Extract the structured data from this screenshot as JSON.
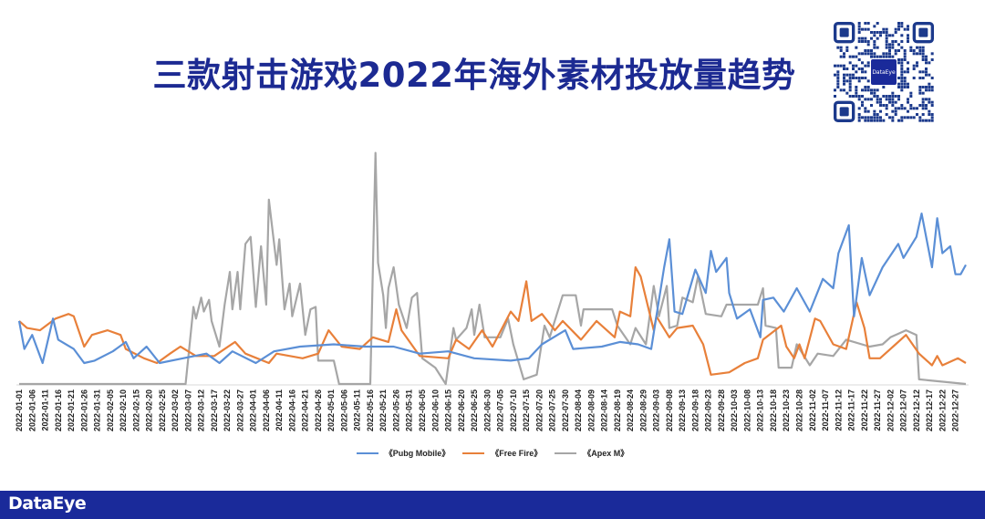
{
  "title": "三款射击游戏2022年海外素材投放量趋势",
  "qr": {
    "center_label": "DataEye"
  },
  "footer": {
    "logo": "DataEye"
  },
  "colors": {
    "title": "#1c2a92",
    "footer": "#1a2a9a",
    "pubg": "#5b8fd6",
    "freefire": "#e8803a",
    "apex": "#a6a6a6"
  },
  "chart_data": {
    "type": "line",
    "title": "三款射击游戏2022年海外素材投放量趋势",
    "xlabel": "",
    "ylabel": "",
    "y_axis_labels_shown": false,
    "ylim": [
      0,
      100
    ],
    "xlim": [
      "2022-01-01",
      "2022-12-31"
    ],
    "grid": false,
    "legend_position": "bottom",
    "x_tick_labels": [
      "2022-01-01",
      "2022-01-06",
      "2022-01-11",
      "2022-01-16",
      "2022-01-21",
      "2022-01-26",
      "2022-01-31",
      "2022-02-05",
      "2022-02-10",
      "2022-02-15",
      "2022-02-20",
      "2022-02-25",
      "2022-03-02",
      "2022-03-07",
      "2022-03-12",
      "2022-03-17",
      "2022-03-22",
      "2022-03-27",
      "2022-04-01",
      "2022-04-06",
      "2022-04-11",
      "2022-04-16",
      "2022-04-21",
      "2022-04-26",
      "2022-05-01",
      "2022-05-06",
      "2022-05-11",
      "2022-05-16",
      "2022-05-21",
      "2022-05-26",
      "2022-05-31",
      "2022-06-05",
      "2022-06-10",
      "2022-06-15",
      "2022-06-20",
      "2022-06-25",
      "2022-06-30",
      "2022-07-05",
      "2022-07-10",
      "2022-07-15",
      "2022-07-20",
      "2022-07-25",
      "2022-07-30",
      "2022-08-04",
      "2022-08-09",
      "2022-08-14",
      "2022-08-19",
      "2022-08-24",
      "2022-08-29",
      "2022-09-03",
      "2022-09-08",
      "2022-09-13",
      "2022-09-18",
      "2022-09-23",
      "2022-09-28",
      "2022-10-03",
      "2022-10-08",
      "2022-10-13",
      "2022-10-18",
      "2022-10-23",
      "2022-10-28",
      "2022-11-02",
      "2022-11-07",
      "2022-11-12",
      "2022-11-17",
      "2022-11-22",
      "2022-11-27",
      "2022-12-02",
      "2022-12-07",
      "2022-12-12",
      "2022-12-17",
      "2022-12-22",
      "2022-12-27"
    ],
    "series": [
      {
        "name": "《Pubg Mobile》",
        "color": "#5b8fd6",
        "points": [
          [
            "2022-01-01",
            27
          ],
          [
            "2022-01-03",
            15
          ],
          [
            "2022-01-06",
            21
          ],
          [
            "2022-01-10",
            9
          ],
          [
            "2022-01-14",
            28
          ],
          [
            "2022-01-16",
            19
          ],
          [
            "2022-01-22",
            15
          ],
          [
            "2022-01-26",
            9
          ],
          [
            "2022-01-30",
            10
          ],
          [
            "2022-02-06",
            14
          ],
          [
            "2022-02-11",
            18
          ],
          [
            "2022-02-14",
            11
          ],
          [
            "2022-02-19",
            16
          ],
          [
            "2022-02-24",
            9
          ],
          [
            "2022-03-05",
            11
          ],
          [
            "2022-03-14",
            13
          ],
          [
            "2022-03-19",
            9
          ],
          [
            "2022-03-24",
            14
          ],
          [
            "2022-04-02",
            9
          ],
          [
            "2022-04-09",
            14
          ],
          [
            "2022-04-19",
            16
          ],
          [
            "2022-05-02",
            17
          ],
          [
            "2022-05-14",
            16
          ],
          [
            "2022-05-25",
            16
          ],
          [
            "2022-06-04",
            13
          ],
          [
            "2022-06-15",
            14
          ],
          [
            "2022-06-25",
            11
          ],
          [
            "2022-07-09",
            10
          ],
          [
            "2022-07-16",
            11
          ],
          [
            "2022-07-21",
            17
          ],
          [
            "2022-07-30",
            23
          ],
          [
            "2022-08-02",
            15
          ],
          [
            "2022-08-13",
            16
          ],
          [
            "2022-08-20",
            18
          ],
          [
            "2022-08-27",
            17
          ],
          [
            "2022-09-01",
            15
          ],
          [
            "2022-09-06",
            50
          ],
          [
            "2022-09-08",
            62
          ],
          [
            "2022-09-10",
            31
          ],
          [
            "2022-09-13",
            30
          ],
          [
            "2022-09-18",
            49
          ],
          [
            "2022-09-22",
            39
          ],
          [
            "2022-09-24",
            57
          ],
          [
            "2022-09-26",
            48
          ],
          [
            "2022-09-30",
            54
          ],
          [
            "2022-10-01",
            39
          ],
          [
            "2022-10-04",
            28
          ],
          [
            "2022-10-09",
            32
          ],
          [
            "2022-10-13",
            20
          ],
          [
            "2022-10-14",
            36
          ],
          [
            "2022-10-18",
            37
          ],
          [
            "2022-10-22",
            31
          ],
          [
            "2022-10-27",
            41
          ],
          [
            "2022-11-01",
            31
          ],
          [
            "2022-11-06",
            45
          ],
          [
            "2022-11-10",
            41
          ],
          [
            "2022-11-12",
            56
          ],
          [
            "2022-11-16",
            68
          ],
          [
            "2022-11-18",
            29
          ],
          [
            "2022-11-21",
            54
          ],
          [
            "2022-11-24",
            38
          ],
          [
            "2022-11-29",
            50
          ],
          [
            "2022-12-05",
            60
          ],
          [
            "2022-12-07",
            54
          ],
          [
            "2022-12-12",
            63
          ],
          [
            "2022-12-14",
            73
          ],
          [
            "2022-12-18",
            50
          ],
          [
            "2022-12-20",
            71
          ],
          [
            "2022-12-22",
            56
          ],
          [
            "2022-12-25",
            59
          ],
          [
            "2022-12-27",
            47
          ],
          [
            "2022-12-29",
            47
          ],
          [
            "2022-12-31",
            51
          ]
        ]
      },
      {
        "name": "《Free Fire》",
        "color": "#e8803a",
        "points": [
          [
            "2022-01-01",
            27
          ],
          [
            "2022-01-04",
            24
          ],
          [
            "2022-01-09",
            23
          ],
          [
            "2022-01-15",
            28
          ],
          [
            "2022-01-20",
            30
          ],
          [
            "2022-01-22",
            29
          ],
          [
            "2022-01-26",
            16
          ],
          [
            "2022-01-29",
            21
          ],
          [
            "2022-02-04",
            23
          ],
          [
            "2022-02-09",
            21
          ],
          [
            "2022-02-11",
            15
          ],
          [
            "2022-02-18",
            11
          ],
          [
            "2022-02-23",
            9
          ],
          [
            "2022-02-28",
            13
          ],
          [
            "2022-03-04",
            16
          ],
          [
            "2022-03-10",
            12
          ],
          [
            "2022-03-17",
            12
          ],
          [
            "2022-03-25",
            18
          ],
          [
            "2022-03-29",
            13
          ],
          [
            "2022-04-07",
            9
          ],
          [
            "2022-04-10",
            13
          ],
          [
            "2022-04-20",
            11
          ],
          [
            "2022-04-26",
            13
          ],
          [
            "2022-04-30",
            23
          ],
          [
            "2022-05-05",
            16
          ],
          [
            "2022-05-12",
            15
          ],
          [
            "2022-05-17",
            20
          ],
          [
            "2022-05-23",
            18
          ],
          [
            "2022-05-26",
            32
          ],
          [
            "2022-05-28",
            23
          ],
          [
            "2022-06-04",
            12
          ],
          [
            "2022-06-15",
            11
          ],
          [
            "2022-06-18",
            19
          ],
          [
            "2022-06-23",
            15
          ],
          [
            "2022-06-28",
            23
          ],
          [
            "2022-07-02",
            16
          ],
          [
            "2022-07-09",
            31
          ],
          [
            "2022-07-12",
            27
          ],
          [
            "2022-07-15",
            44
          ],
          [
            "2022-07-17",
            27
          ],
          [
            "2022-07-21",
            30
          ],
          [
            "2022-07-26",
            23
          ],
          [
            "2022-07-29",
            27
          ],
          [
            "2022-08-05",
            19
          ],
          [
            "2022-08-11",
            27
          ],
          [
            "2022-08-18",
            20
          ],
          [
            "2022-08-20",
            31
          ],
          [
            "2022-08-24",
            29
          ],
          [
            "2022-08-26",
            50
          ],
          [
            "2022-08-28",
            46
          ],
          [
            "2022-09-02",
            23
          ],
          [
            "2022-09-03",
            29
          ],
          [
            "2022-09-08",
            20
          ],
          [
            "2022-09-11",
            24
          ],
          [
            "2022-09-17",
            25
          ],
          [
            "2022-09-21",
            17
          ],
          [
            "2022-09-24",
            4
          ],
          [
            "2022-10-01",
            5
          ],
          [
            "2022-10-07",
            9
          ],
          [
            "2022-10-12",
            11
          ],
          [
            "2022-10-14",
            19
          ],
          [
            "2022-10-21",
            25
          ],
          [
            "2022-10-23",
            16
          ],
          [
            "2022-10-26",
            11
          ],
          [
            "2022-10-28",
            17
          ],
          [
            "2022-10-30",
            11
          ],
          [
            "2022-11-03",
            28
          ],
          [
            "2022-11-05",
            27
          ],
          [
            "2022-11-10",
            17
          ],
          [
            "2022-11-15",
            15
          ],
          [
            "2022-11-19",
            35
          ],
          [
            "2022-11-22",
            24
          ],
          [
            "2022-11-24",
            11
          ],
          [
            "2022-11-28",
            11
          ],
          [
            "2022-12-03",
            16
          ],
          [
            "2022-12-08",
            21
          ],
          [
            "2022-12-13",
            13
          ],
          [
            "2022-12-18",
            8
          ],
          [
            "2022-12-20",
            12
          ],
          [
            "2022-12-22",
            8
          ],
          [
            "2022-12-28",
            11
          ],
          [
            "2022-12-31",
            9
          ]
        ]
      },
      {
        "name": "《Apex M》",
        "color": "#a6a6a6",
        "points": [
          [
            "2022-01-01",
            0
          ],
          [
            "2022-03-06",
            0
          ],
          [
            "2022-03-09",
            33
          ],
          [
            "2022-03-10",
            28
          ],
          [
            "2022-03-12",
            37
          ],
          [
            "2022-03-13",
            31
          ],
          [
            "2022-03-15",
            36
          ],
          [
            "2022-03-16",
            27
          ],
          [
            "2022-03-19",
            16
          ],
          [
            "2022-03-21",
            34
          ],
          [
            "2022-03-23",
            48
          ],
          [
            "2022-03-24",
            32
          ],
          [
            "2022-03-26",
            48
          ],
          [
            "2022-03-27",
            32
          ],
          [
            "2022-03-29",
            60
          ],
          [
            "2022-03-31",
            63
          ],
          [
            "2022-04-02",
            33
          ],
          [
            "2022-04-04",
            59
          ],
          [
            "2022-04-06",
            34
          ],
          [
            "2022-04-07",
            79
          ],
          [
            "2022-04-10",
            51
          ],
          [
            "2022-04-11",
            62
          ],
          [
            "2022-04-13",
            32
          ],
          [
            "2022-04-15",
            43
          ],
          [
            "2022-04-16",
            29
          ],
          [
            "2022-04-19",
            43
          ],
          [
            "2022-04-21",
            21
          ],
          [
            "2022-04-23",
            32
          ],
          [
            "2022-04-25",
            33
          ],
          [
            "2022-04-26",
            10
          ],
          [
            "2022-05-02",
            10
          ],
          [
            "2022-05-04",
            0
          ],
          [
            "2022-05-16",
            0
          ],
          [
            "2022-05-18",
            99
          ],
          [
            "2022-05-19",
            52
          ],
          [
            "2022-05-21",
            38
          ],
          [
            "2022-05-22",
            24
          ],
          [
            "2022-05-23",
            41
          ],
          [
            "2022-05-25",
            50
          ],
          [
            "2022-05-27",
            34
          ],
          [
            "2022-05-30",
            24
          ],
          [
            "2022-06-01",
            37
          ],
          [
            "2022-06-03",
            39
          ],
          [
            "2022-06-05",
            11
          ],
          [
            "2022-06-10",
            7
          ],
          [
            "2022-06-14",
            0
          ],
          [
            "2022-06-17",
            24
          ],
          [
            "2022-06-18",
            19
          ],
          [
            "2022-06-22",
            24
          ],
          [
            "2022-06-24",
            32
          ],
          [
            "2022-06-25",
            21
          ],
          [
            "2022-06-27",
            34
          ],
          [
            "2022-06-29",
            20
          ],
          [
            "2022-07-05",
            20
          ],
          [
            "2022-07-08",
            28
          ],
          [
            "2022-07-10",
            17
          ],
          [
            "2022-07-14",
            2
          ],
          [
            "2022-07-19",
            4
          ],
          [
            "2022-07-22",
            25
          ],
          [
            "2022-07-24",
            20
          ],
          [
            "2022-07-29",
            38
          ],
          [
            "2022-08-03",
            38
          ],
          [
            "2022-08-05",
            25
          ],
          [
            "2022-08-06",
            32
          ],
          [
            "2022-08-17",
            32
          ],
          [
            "2022-08-19",
            25
          ],
          [
            "2022-08-24",
            17
          ],
          [
            "2022-08-26",
            24
          ],
          [
            "2022-08-30",
            17
          ],
          [
            "2022-09-02",
            42
          ],
          [
            "2022-09-04",
            29
          ],
          [
            "2022-09-07",
            42
          ],
          [
            "2022-09-08",
            24
          ],
          [
            "2022-09-11",
            25
          ],
          [
            "2022-09-13",
            37
          ],
          [
            "2022-09-17",
            35
          ],
          [
            "2022-09-19",
            46
          ],
          [
            "2022-09-22",
            30
          ],
          [
            "2022-09-28",
            29
          ],
          [
            "2022-09-30",
            34
          ],
          [
            "2022-10-12",
            34
          ],
          [
            "2022-10-14",
            41
          ],
          [
            "2022-10-15",
            25
          ],
          [
            "2022-10-19",
            24
          ],
          [
            "2022-10-20",
            7
          ],
          [
            "2022-10-25",
            7
          ],
          [
            "2022-10-27",
            17
          ],
          [
            "2022-11-01",
            8
          ],
          [
            "2022-11-04",
            13
          ],
          [
            "2022-11-10",
            12
          ],
          [
            "2022-11-15",
            19
          ],
          [
            "2022-11-24",
            16
          ],
          [
            "2022-11-29",
            17
          ],
          [
            "2022-12-02",
            20
          ],
          [
            "2022-12-08",
            23
          ],
          [
            "2022-12-12",
            21
          ],
          [
            "2022-12-13",
            2
          ],
          [
            "2022-12-31",
            0
          ]
        ]
      }
    ]
  }
}
